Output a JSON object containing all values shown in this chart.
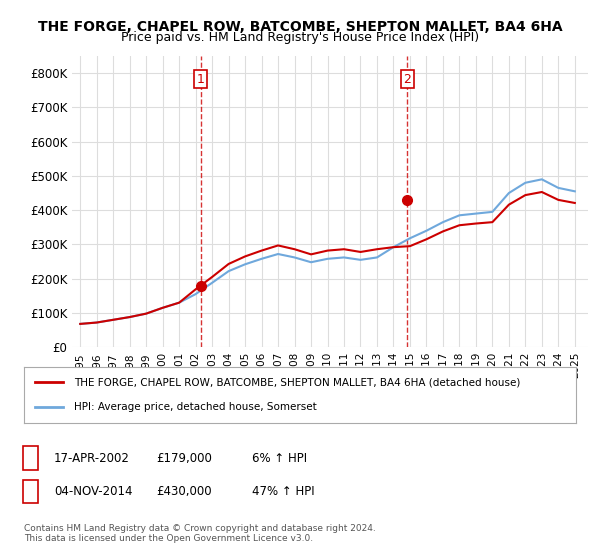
{
  "title": "THE FORGE, CHAPEL ROW, BATCOMBE, SHEPTON MALLET, BA4 6HA",
  "subtitle": "Price paid vs. HM Land Registry's House Price Index (HPI)",
  "legend_line1": "THE FORGE, CHAPEL ROW, BATCOMBE, SHEPTON MALLET, BA4 6HA (detached house)",
  "legend_line2": "HPI: Average price, detached house, Somerset",
  "footnote": "Contains HM Land Registry data © Crown copyright and database right 2024.\nThis data is licensed under the Open Government Licence v3.0.",
  "table_rows": [
    {
      "num": "1",
      "date": "17-APR-2002",
      "price": "£179,000",
      "hpi": "6% ↑ HPI"
    },
    {
      "num": "2",
      "date": "04-NOV-2014",
      "price": "£430,000",
      "hpi": "47% ↑ HPI"
    }
  ],
  "sale1_year": 2002.3,
  "sale1_price": 179000,
  "sale2_year": 2014.84,
  "sale2_price": 430000,
  "hpi_color": "#6fa8dc",
  "property_color": "#cc0000",
  "vline_color": "#cc0000",
  "background_color": "#ffffff",
  "grid_color": "#dddddd",
  "years": [
    1995,
    1996,
    1997,
    1998,
    1999,
    2000,
    2001,
    2002,
    2003,
    2004,
    2005,
    2006,
    2007,
    2008,
    2009,
    2010,
    2011,
    2012,
    2013,
    2014,
    2015,
    2016,
    2017,
    2018,
    2019,
    2020,
    2021,
    2022,
    2023,
    2024,
    2025
  ],
  "hpi_values": [
    68000,
    72000,
    80000,
    88000,
    98000,
    115000,
    130000,
    155000,
    188000,
    222000,
    242000,
    258000,
    272000,
    262000,
    248000,
    258000,
    262000,
    255000,
    262000,
    292000,
    318000,
    340000,
    365000,
    385000,
    390000,
    395000,
    450000,
    480000,
    490000,
    465000,
    455000
  ],
  "property_hpi_values": [
    68000,
    72000,
    80000,
    88000,
    98000,
    115000,
    130000,
    169000,
    205000,
    243000,
    265000,
    282000,
    297000,
    286000,
    271000,
    282000,
    286000,
    278000,
    286000,
    292000,
    295000,
    315000,
    338000,
    356000,
    361000,
    365000,
    416000,
    444000,
    453000,
    430000,
    421000
  ],
  "ylim_max": 850000,
  "xlim_min": 1994.5,
  "xlim_max": 2025.8,
  "yticks": [
    0,
    100000,
    200000,
    300000,
    400000,
    500000,
    600000,
    700000,
    800000
  ]
}
